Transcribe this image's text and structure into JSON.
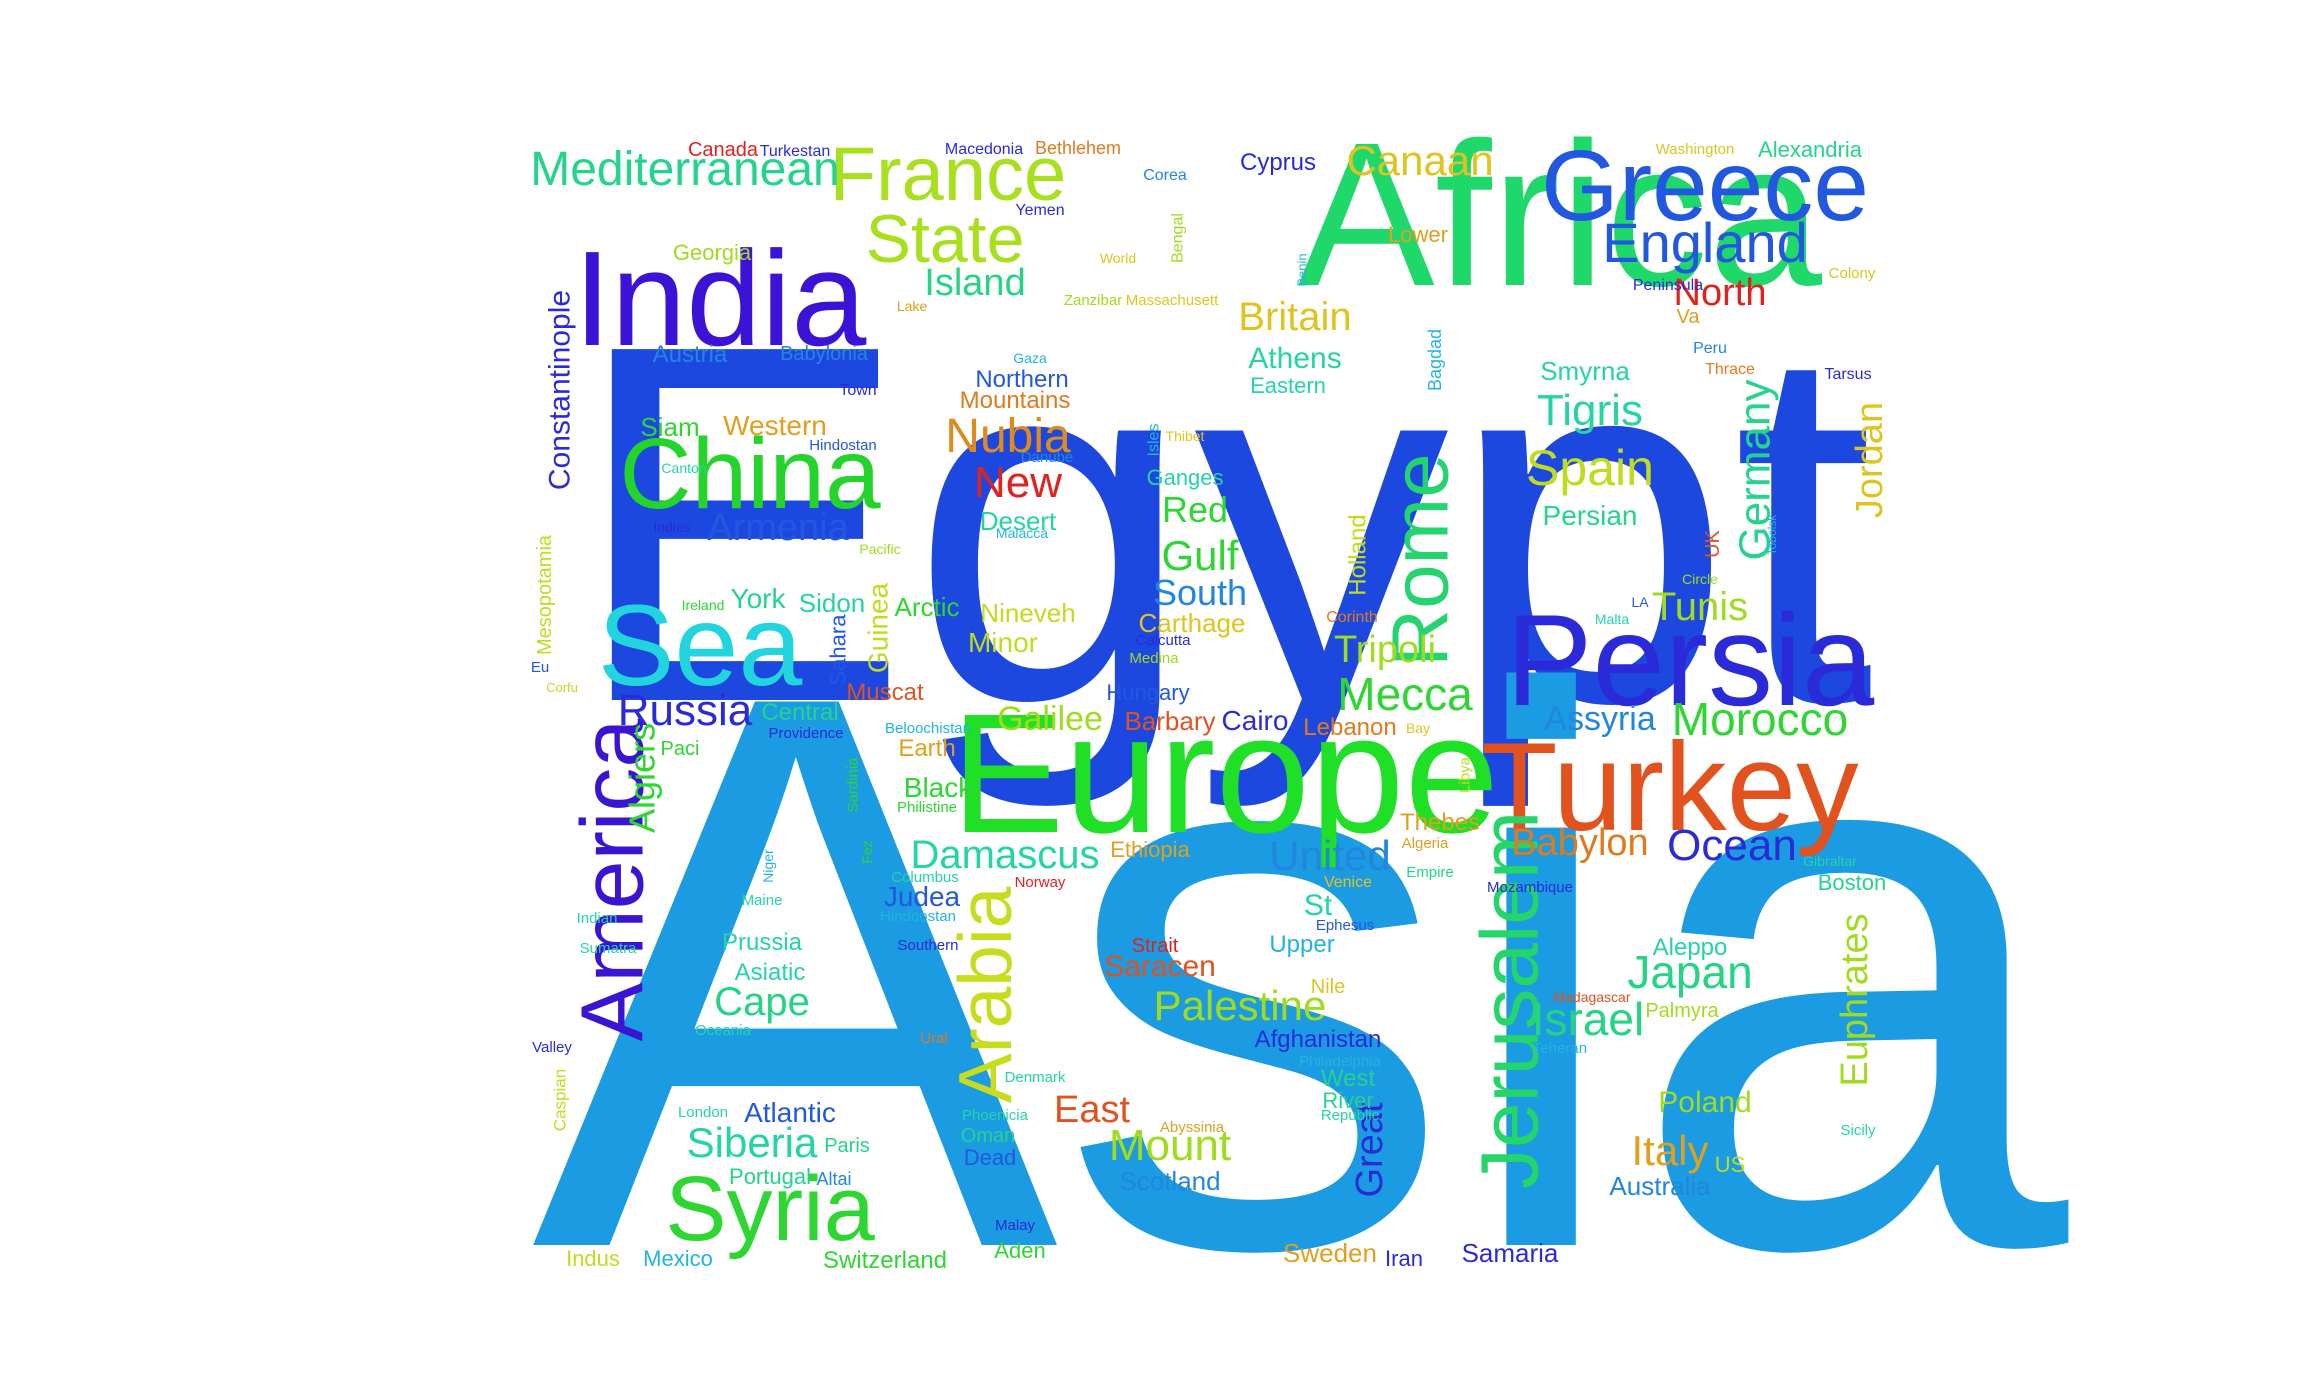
{
  "words": [
    {
      "text": "Egypt",
      "color": "#1c48e0"
    },
    {
      "text": "Asia",
      "color": "#1a9be2"
    },
    {
      "text": "Africa",
      "color": "#1ed86a"
    },
    {
      "text": "Europe",
      "color": "#1fe026"
    },
    {
      "text": "India",
      "color": "#3b12d6"
    },
    {
      "text": "Persia",
      "color": "#2a2ad8"
    },
    {
      "text": "Turkey",
      "color": "#e2521e"
    },
    {
      "text": "Greece",
      "color": "#2258e0"
    },
    {
      "text": "China",
      "color": "#24d42a"
    },
    {
      "text": "Sea",
      "color": "#22d4de"
    },
    {
      "text": "America",
      "color": "#3a14d2"
    },
    {
      "text": "Jerusalem",
      "color": "#24d66a"
    },
    {
      "text": "Syria",
      "color": "#2ed632"
    },
    {
      "text": "Arabia",
      "color": "#c8dc1e"
    },
    {
      "text": "Rome",
      "color": "#24d46e"
    },
    {
      "text": "France",
      "color": "#a8e01e"
    },
    {
      "text": "State",
      "color": "#a8e01e"
    },
    {
      "text": "England",
      "color": "#2258e0"
    },
    {
      "text": "Mediterranean",
      "color": "#24d48c"
    },
    {
      "text": "Canaan",
      "color": "#e0c41e"
    },
    {
      "text": "Britain",
      "color": "#e0c41e"
    },
    {
      "text": "Island",
      "color": "#24d482"
    },
    {
      "text": "North",
      "color": "#e0221e"
    },
    {
      "text": "Nubia",
      "color": "#e08a1e"
    },
    {
      "text": "New",
      "color": "#e0221e"
    },
    {
      "text": "Armenia",
      "color": "#2258e0"
    },
    {
      "text": "Tigris",
      "color": "#24d4a6"
    },
    {
      "text": "Spain",
      "color": "#c0dc1e"
    },
    {
      "text": "Germany",
      "color": "#24d48c"
    },
    {
      "text": "Jordan",
      "color": "#e0c41e"
    },
    {
      "text": "Constantinople",
      "color": "#2a2ad8"
    },
    {
      "text": "Russia",
      "color": "#2a2ad8"
    },
    {
      "text": "Damascus",
      "color": "#24d4a6"
    },
    {
      "text": "United",
      "color": "#2286e0"
    },
    {
      "text": "Mecca",
      "color": "#2ed632"
    },
    {
      "text": "Morocco",
      "color": "#2ed632"
    },
    {
      "text": "Ocean",
      "color": "#2a2ad8"
    },
    {
      "text": "Babylon",
      "color": "#e07a1e"
    },
    {
      "text": "Japan",
      "color": "#24d482"
    },
    {
      "text": "Israel",
      "color": "#24d482"
    },
    {
      "text": "Euphrates",
      "color": "#a0dc1e"
    },
    {
      "text": "Palestine",
      "color": "#a0dc1e"
    },
    {
      "text": "Cape",
      "color": "#24d482"
    },
    {
      "text": "Siberia",
      "color": "#24d4a6"
    },
    {
      "text": "Mount",
      "color": "#a0dc1e"
    },
    {
      "text": "Italy",
      "color": "#e0a01e"
    },
    {
      "text": "East",
      "color": "#e0521e"
    },
    {
      "text": "Great",
      "color": "#2a2ad8"
    },
    {
      "text": "Gulf",
      "color": "#2ed632"
    },
    {
      "text": "Red",
      "color": "#2ed632"
    },
    {
      "text": "South",
      "color": "#2286e0"
    },
    {
      "text": "Tunis",
      "color": "#a0dc1e"
    },
    {
      "text": "Tripoli",
      "color": "#a0dc1e"
    },
    {
      "text": "Algiers",
      "color": "#2ed632"
    },
    {
      "text": "Galilee",
      "color": "#a0dc1e"
    },
    {
      "text": "Assyria",
      "color": "#2286e0"
    },
    {
      "text": "Saracen",
      "color": "#e0521e"
    },
    {
      "text": "Athens",
      "color": "#24d4a6"
    },
    {
      "text": "Western",
      "color": "#e0a01e"
    },
    {
      "text": "Persian",
      "color": "#24d48c"
    },
    {
      "text": "Smyrna",
      "color": "#24d4a6"
    },
    {
      "text": "Holland",
      "color": "#c0dc1e"
    },
    {
      "text": "Guinea",
      "color": "#c0dc1e"
    },
    {
      "text": "Mesopotamia",
      "color": "#c0dc1e"
    },
    {
      "text": "Austria",
      "color": "#2286e0"
    },
    {
      "text": "Siam",
      "color": "#2ed632"
    },
    {
      "text": "Cairo",
      "color": "#2a2ad8"
    },
    {
      "text": "Barbary",
      "color": "#e0521e"
    },
    {
      "text": "Lebanon",
      "color": "#e07a1e"
    },
    {
      "text": "Atlantic",
      "color": "#2258e0"
    },
    {
      "text": "Judea",
      "color": "#2258e0"
    },
    {
      "text": "Prussia",
      "color": "#24d4a6"
    },
    {
      "text": "Asiatic",
      "color": "#24d4a6"
    },
    {
      "text": "Poland",
      "color": "#a0dc1e"
    },
    {
      "text": "Aleppo",
      "color": "#24d4a6"
    },
    {
      "text": "Australia",
      "color": "#2286e0"
    },
    {
      "text": "Black",
      "color": "#2ed632"
    },
    {
      "text": "Earth",
      "color": "#e0a01e"
    },
    {
      "text": "Upper",
      "color": "#22b4e0"
    },
    {
      "text": "St",
      "color": "#24d4a6"
    },
    {
      "text": "West",
      "color": "#24d48c"
    },
    {
      "text": "River",
      "color": "#24d48c"
    },
    {
      "text": "Afghanistan",
      "color": "#2a2ad8"
    },
    {
      "text": "Boston",
      "color": "#24d48c"
    },
    {
      "text": "Sweden",
      "color": "#e0a01e"
    },
    {
      "text": "Samaria",
      "color": "#2a2ad8"
    },
    {
      "text": "Scotland",
      "color": "#2286e0"
    },
    {
      "text": "Switzerland",
      "color": "#2ed632"
    },
    {
      "text": "Mexico",
      "color": "#22b4e0"
    },
    {
      "text": "Indus",
      "color": "#c0dc1e"
    },
    {
      "text": "Aden",
      "color": "#2ed632"
    },
    {
      "text": "Iran",
      "color": "#2a2ad8"
    },
    {
      "text": "Central",
      "color": "#24d48c"
    },
    {
      "text": "York",
      "color": "#24d48c"
    },
    {
      "text": "Sidon",
      "color": "#24d4a6"
    },
    {
      "text": "Arctic",
      "color": "#2ed632"
    },
    {
      "text": "Nineveh",
      "color": "#c0dc1e"
    },
    {
      "text": "Minor",
      "color": "#c0dc1e"
    },
    {
      "text": "Carthage",
      "color": "#e0c41e"
    },
    {
      "text": "Hungary",
      "color": "#2258e0"
    },
    {
      "text": "Muscat",
      "color": "#e0521e"
    },
    {
      "text": "Sahara",
      "color": "#2258e0"
    },
    {
      "text": "Ethiopia",
      "color": "#e0a01e"
    },
    {
      "text": "Thebes",
      "color": "#e0a01e"
    },
    {
      "text": "Northern",
      "color": "#2258e0"
    },
    {
      "text": "Mountains",
      "color": "#e07a1e"
    },
    {
      "text": "Desert",
      "color": "#24d4a6"
    },
    {
      "text": "Ganges",
      "color": "#24d4a6"
    },
    {
      "text": "Eastern",
      "color": "#24d4a6"
    },
    {
      "text": "Lower",
      "color": "#e0a01e"
    },
    {
      "text": "Georgia",
      "color": "#a0dc1e"
    },
    {
      "text": "Babylonia",
      "color": "#2286e0"
    },
    {
      "text": "Cyprus",
      "color": "#2a2ad8"
    },
    {
      "text": "Alexandria",
      "color": "#24d48c"
    },
    {
      "text": "Canada",
      "color": "#e0221e"
    },
    {
      "text": "Turkestan",
      "color": "#2a2ad8"
    },
    {
      "text": "Macedonia",
      "color": "#2a2ad8"
    },
    {
      "text": "Bethlehem",
      "color": "#e07a1e"
    },
    {
      "text": "Washington",
      "color": "#e0c41e"
    },
    {
      "text": "Corea",
      "color": "#2286e0"
    },
    {
      "text": "Yemen",
      "color": "#2a2ad8"
    },
    {
      "text": "Bengal",
      "color": "#a0dc1e"
    },
    {
      "text": "Benin",
      "color": "#22b4e0"
    },
    {
      "text": "World",
      "color": "#e0c41e"
    },
    {
      "text": "Zanzibar",
      "color": "#a0dc1e"
    },
    {
      "text": "Massachusett",
      "color": "#e0c41e"
    },
    {
      "text": "Peninsula",
      "color": "#2a2ad8"
    },
    {
      "text": "Colony",
      "color": "#e0c41e"
    },
    {
      "text": "Va",
      "color": "#e0a01e"
    },
    {
      "text": "Lake",
      "color": "#e0a01e"
    },
    {
      "text": "Bagdad",
      "color": "#22b4e0"
    },
    {
      "text": "Gaza",
      "color": "#22b4e0"
    },
    {
      "text": "Town",
      "color": "#2a2ad8"
    },
    {
      "text": "Peru",
      "color": "#2286e0"
    },
    {
      "text": "Thrace",
      "color": "#e07a1e"
    },
    {
      "text": "Tarsus",
      "color": "#2a2ad8"
    },
    {
      "text": "Hindostan",
      "color": "#2258e0"
    },
    {
      "text": "Canton",
      "color": "#24d4a6"
    },
    {
      "text": "Indies",
      "color": "#2a2ad8"
    },
    {
      "text": "Danube",
      "color": "#2286e0"
    },
    {
      "text": "Malacca",
      "color": "#22b4e0"
    },
    {
      "text": "Pacific",
      "color": "#a0dc1e"
    },
    {
      "text": "Isles",
      "color": "#22b4e0"
    },
    {
      "text": "Thibet",
      "color": "#e0c41e"
    },
    {
      "text": "UK",
      "color": "#e0521e"
    },
    {
      "text": "Tobolsk",
      "color": "#22b4e0"
    },
    {
      "text": "Circle",
      "color": "#a0dc1e"
    },
    {
      "text": "LA",
      "color": "#2258e0"
    },
    {
      "text": "Malta",
      "color": "#24d4a6"
    },
    {
      "text": "Corinth",
      "color": "#e07a1e"
    },
    {
      "text": "Ireland",
      "color": "#2ed632"
    },
    {
      "text": "Calcutta",
      "color": "#2a2ad8"
    },
    {
      "text": "Medina",
      "color": "#a0dc1e"
    },
    {
      "text": "Eu",
      "color": "#2258e0"
    },
    {
      "text": "Corfu",
      "color": "#c0dc1e"
    },
    {
      "text": "Paci",
      "color": "#2ed632"
    },
    {
      "text": "Providence",
      "color": "#2a2ad8"
    },
    {
      "text": "Beloochistan",
      "color": "#22b4e0"
    },
    {
      "text": "Bay",
      "color": "#e0c41e"
    },
    {
      "text": "Sardinia",
      "color": "#2ed632"
    },
    {
      "text": "Philistine",
      "color": "#2ed632"
    },
    {
      "text": "Libya",
      "color": "#c0dc1e"
    },
    {
      "text": "Algeria",
      "color": "#e0a01e"
    },
    {
      "text": "Niger",
      "color": "#22b4e0"
    },
    {
      "text": "Fez",
      "color": "#2ed632"
    },
    {
      "text": "Columbus",
      "color": "#24d4a6"
    },
    {
      "text": "Norway",
      "color": "#e0221e"
    },
    {
      "text": "Venice",
      "color": "#e0c41e"
    },
    {
      "text": "Empire",
      "color": "#24d48c"
    },
    {
      "text": "Gibraltar",
      "color": "#24d4a6"
    },
    {
      "text": "Mozambique",
      "color": "#2a2ad8"
    },
    {
      "text": "Maine",
      "color": "#24d4a6"
    },
    {
      "text": "Hindoostan",
      "color": "#22b4e0"
    },
    {
      "text": "Indian",
      "color": "#24d4a6"
    },
    {
      "text": "Sumatra",
      "color": "#24d4a6"
    },
    {
      "text": "Southern",
      "color": "#2a2ad8"
    },
    {
      "text": "Ephesus",
      "color": "#2258e0"
    },
    {
      "text": "Strait",
      "color": "#e0221e"
    },
    {
      "text": "Nile",
      "color": "#e0c41e"
    },
    {
      "text": "Madagascar",
      "color": "#e0521e"
    },
    {
      "text": "Palmyra",
      "color": "#a0dc1e"
    },
    {
      "text": "Teheran",
      "color": "#22b4e0"
    },
    {
      "text": "Oceania",
      "color": "#24d4a6"
    },
    {
      "text": "Ural",
      "color": "#e07a1e"
    },
    {
      "text": "Valley",
      "color": "#2a2ad8"
    },
    {
      "text": "Caspian",
      "color": "#c0dc1e"
    },
    {
      "text": "Denmark",
      "color": "#24d4a6"
    },
    {
      "text": "Philadelphia",
      "color": "#22b4e0"
    },
    {
      "text": "Republic",
      "color": "#24d4a6"
    },
    {
      "text": "London",
      "color": "#24d4a6"
    },
    {
      "text": "Phoenicia",
      "color": "#24d4a6"
    },
    {
      "text": "Oman",
      "color": "#24d48c"
    },
    {
      "text": "Dead",
      "color": "#2258e0"
    },
    {
      "text": "Abyssinia",
      "color": "#e0a01e"
    },
    {
      "text": "Paris",
      "color": "#24d48c"
    },
    {
      "text": "Portugal",
      "color": "#24d48c"
    },
    {
      "text": "Altai",
      "color": "#2286e0"
    },
    {
      "text": "US",
      "color": "#c0dc1e"
    },
    {
      "text": "Sicily",
      "color": "#24d4a6"
    },
    {
      "text": "Malay",
      "color": "#2a2ad8"
    }
  ]
}
